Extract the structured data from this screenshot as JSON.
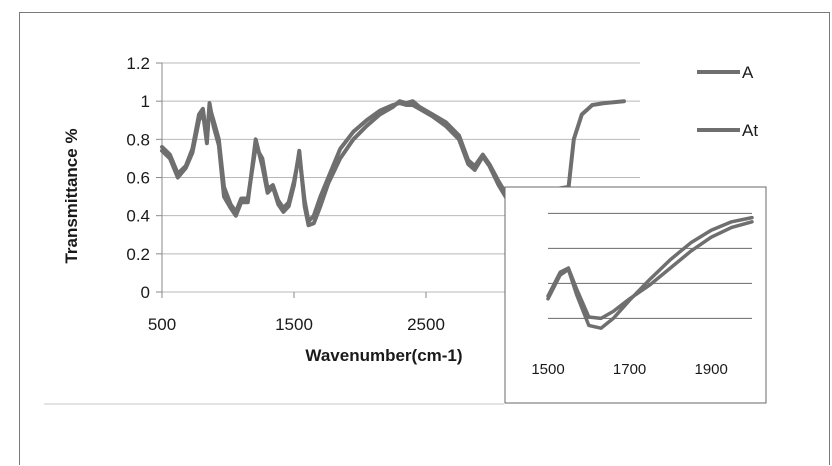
{
  "chart_data": [
    {
      "type": "line",
      "title": "",
      "xlabel": "Wavenumber(cm-1)",
      "ylabel": "Transmittance %",
      "xlim": [
        500,
        4000
      ],
      "ylim": [
        0,
        1.2
      ],
      "x_ticks": [
        "500",
        "1500",
        "2500"
      ],
      "y_ticks": [
        "0",
        "0.2",
        "0.4",
        "0.6",
        "0.8",
        "1",
        "1.2"
      ],
      "grid": "horizontal",
      "legend_position": "right",
      "series": [
        {
          "name": "A",
          "color": "#6f6f6f",
          "points": [
            [
              500,
              0.76
            ],
            [
              560,
              0.72
            ],
            [
              620,
              0.62
            ],
            [
              680,
              0.66
            ],
            [
              730,
              0.75
            ],
            [
              780,
              0.93
            ],
            [
              810,
              0.96
            ],
            [
              840,
              0.8
            ],
            [
              860,
              0.97
            ],
            [
              890,
              0.9
            ],
            [
              930,
              0.8
            ],
            [
              970,
              0.55
            ],
            [
              1020,
              0.46
            ],
            [
              1060,
              0.42
            ],
            [
              1100,
              0.49
            ],
            [
              1150,
              0.49
            ],
            [
              1210,
              0.76
            ],
            [
              1260,
              0.7
            ],
            [
              1300,
              0.54
            ],
            [
              1340,
              0.56
            ],
            [
              1380,
              0.48
            ],
            [
              1420,
              0.44
            ],
            [
              1460,
              0.47
            ],
            [
              1500,
              0.58
            ],
            [
              1540,
              0.72
            ],
            [
              1580,
              0.48
            ],
            [
              1610,
              0.37
            ],
            [
              1650,
              0.4
            ],
            [
              1700,
              0.5
            ],
            [
              1760,
              0.6
            ],
            [
              1850,
              0.75
            ],
            [
              1950,
              0.84
            ],
            [
              2050,
              0.9
            ],
            [
              2150,
              0.95
            ],
            [
              2250,
              0.98
            ],
            [
              2300,
              0.99
            ],
            [
              2350,
              0.98
            ],
            [
              2400,
              0.98
            ],
            [
              2450,
              0.96
            ],
            [
              2550,
              0.92
            ],
            [
              2650,
              0.87
            ],
            [
              2750,
              0.8
            ],
            [
              2820,
              0.67
            ],
            [
              2870,
              0.64
            ],
            [
              2930,
              0.71
            ],
            [
              2980,
              0.66
            ],
            [
              3050,
              0.56
            ],
            [
              3120,
              0.48
            ]
          ]
        },
        {
          "name": "At",
          "color": "#6f6f6f",
          "points": [
            [
              500,
              0.74
            ],
            [
              560,
              0.7
            ],
            [
              620,
              0.6
            ],
            [
              680,
              0.65
            ],
            [
              730,
              0.73
            ],
            [
              780,
              0.9
            ],
            [
              810,
              0.94
            ],
            [
              840,
              0.78
            ],
            [
              860,
              0.99
            ],
            [
              890,
              0.87
            ],
            [
              930,
              0.77
            ],
            [
              970,
              0.5
            ],
            [
              1020,
              0.44
            ],
            [
              1060,
              0.4
            ],
            [
              1100,
              0.47
            ],
            [
              1150,
              0.47
            ],
            [
              1210,
              0.8
            ],
            [
              1260,
              0.66
            ],
            [
              1300,
              0.52
            ],
            [
              1340,
              0.55
            ],
            [
              1380,
              0.46
            ],
            [
              1420,
              0.42
            ],
            [
              1460,
              0.45
            ],
            [
              1500,
              0.56
            ],
            [
              1540,
              0.74
            ],
            [
              1580,
              0.45
            ],
            [
              1610,
              0.35
            ],
            [
              1650,
              0.36
            ],
            [
              1700,
              0.45
            ],
            [
              1760,
              0.57
            ],
            [
              1850,
              0.7
            ],
            [
              1950,
              0.8
            ],
            [
              2050,
              0.87
            ],
            [
              2150,
              0.93
            ],
            [
              2250,
              0.97
            ],
            [
              2300,
              1.0
            ],
            [
              2350,
              0.99
            ],
            [
              2400,
              1.0
            ],
            [
              2450,
              0.97
            ],
            [
              2550,
              0.93
            ],
            [
              2650,
              0.89
            ],
            [
              2750,
              0.82
            ],
            [
              2820,
              0.69
            ],
            [
              2870,
              0.66
            ],
            [
              2930,
              0.72
            ],
            [
              2980,
              0.67
            ],
            [
              3050,
              0.58
            ],
            [
              3120,
              0.5
            ],
            [
              3580,
              0.55
            ],
            [
              3620,
              0.8
            ],
            [
              3680,
              0.93
            ],
            [
              3760,
              0.98
            ],
            [
              3850,
              0.99
            ],
            [
              4000,
              1.0
            ]
          ]
        }
      ]
    },
    {
      "type": "line",
      "title": "",
      "xlabel": "",
      "ylabel": "",
      "xlim": [
        1500,
        2000
      ],
      "ylim": [
        0,
        1
      ],
      "x_ticks": [
        "1500",
        "1700",
        "1900"
      ],
      "grid": "horizontal",
      "series": [
        {
          "name": "",
          "color": "#6f6f6f",
          "points": [
            [
              1500,
              0.35
            ],
            [
              1530,
              0.52
            ],
            [
              1550,
              0.55
            ],
            [
              1570,
              0.4
            ],
            [
              1600,
              0.2
            ],
            [
              1630,
              0.19
            ],
            [
              1660,
              0.24
            ],
            [
              1700,
              0.33
            ],
            [
              1750,
              0.43
            ],
            [
              1800,
              0.55
            ],
            [
              1850,
              0.67
            ],
            [
              1900,
              0.77
            ],
            [
              1950,
              0.84
            ],
            [
              2000,
              0.88
            ]
          ]
        },
        {
          "name": "",
          "color": "#6f6f6f",
          "points": [
            [
              1500,
              0.33
            ],
            [
              1530,
              0.5
            ],
            [
              1550,
              0.54
            ],
            [
              1570,
              0.36
            ],
            [
              1600,
              0.14
            ],
            [
              1630,
              0.12
            ],
            [
              1660,
              0.19
            ],
            [
              1700,
              0.32
            ],
            [
              1750,
              0.47
            ],
            [
              1800,
              0.61
            ],
            [
              1850,
              0.73
            ],
            [
              1900,
              0.82
            ],
            [
              1950,
              0.88
            ],
            [
              2000,
              0.91
            ]
          ]
        }
      ]
    }
  ]
}
